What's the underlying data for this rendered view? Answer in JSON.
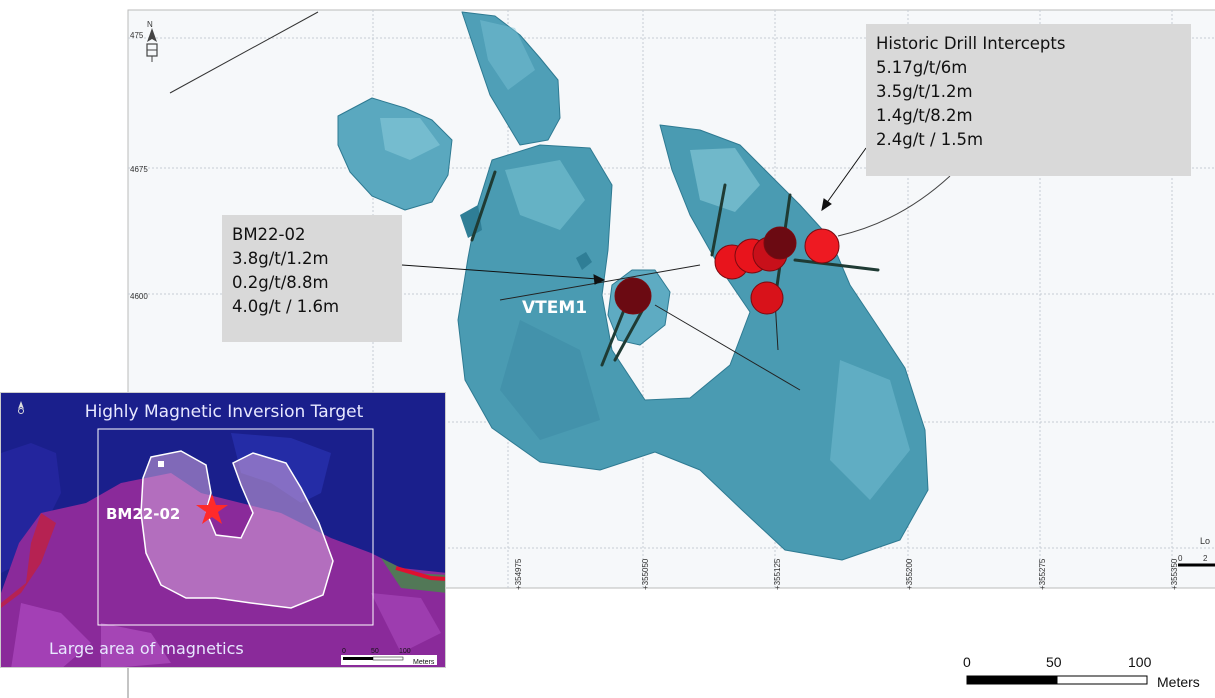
{
  "map": {
    "northing_ticks": [
      "475",
      "4675",
      "4600"
    ],
    "easting_ticks": [
      "+354975",
      "+355050",
      "+355125",
      "+355200",
      "+355275",
      "+355350"
    ],
    "north_arrow_letter": "N",
    "edge_cut_text": "Lo",
    "edge_cut_num": "2",
    "edge_cut_zero": "0"
  },
  "callouts": {
    "historic": {
      "title": "Historic Drill Intercepts",
      "lines": [
        "5.17g/t/6m",
        "3.5g/t/1.2m",
        "1.4g/t/8.2m",
        "2.4g/t / 1.5m"
      ]
    },
    "bm22": {
      "title": "BM22-02",
      "lines": [
        "3.8g/t/1.2m",
        "0.2g/t/8.8m",
        "4.0g/t / 1.6m"
      ]
    }
  },
  "labels": {
    "vtem": "VTEM1"
  },
  "inset": {
    "title": "Highly Magnetic Inversion Target",
    "marker_label": "BM22-02",
    "bottom_label": "Large area of magnetics",
    "scale": {
      "ticks": [
        "0",
        "50",
        "100"
      ],
      "unit": "Meters"
    }
  },
  "scale_bar": {
    "ticks": [
      "0",
      "50",
      "100"
    ],
    "unit": "Meters"
  },
  "colors": {
    "body": "#4a9bb2",
    "body_light": "#7cc4d6",
    "intercept": "#e8141c",
    "intercept_dark": "#6b0a12",
    "inset_bg": "#1a1f8c",
    "inset_magenta": "#8a2a9a",
    "star": "#ff2a2a"
  }
}
